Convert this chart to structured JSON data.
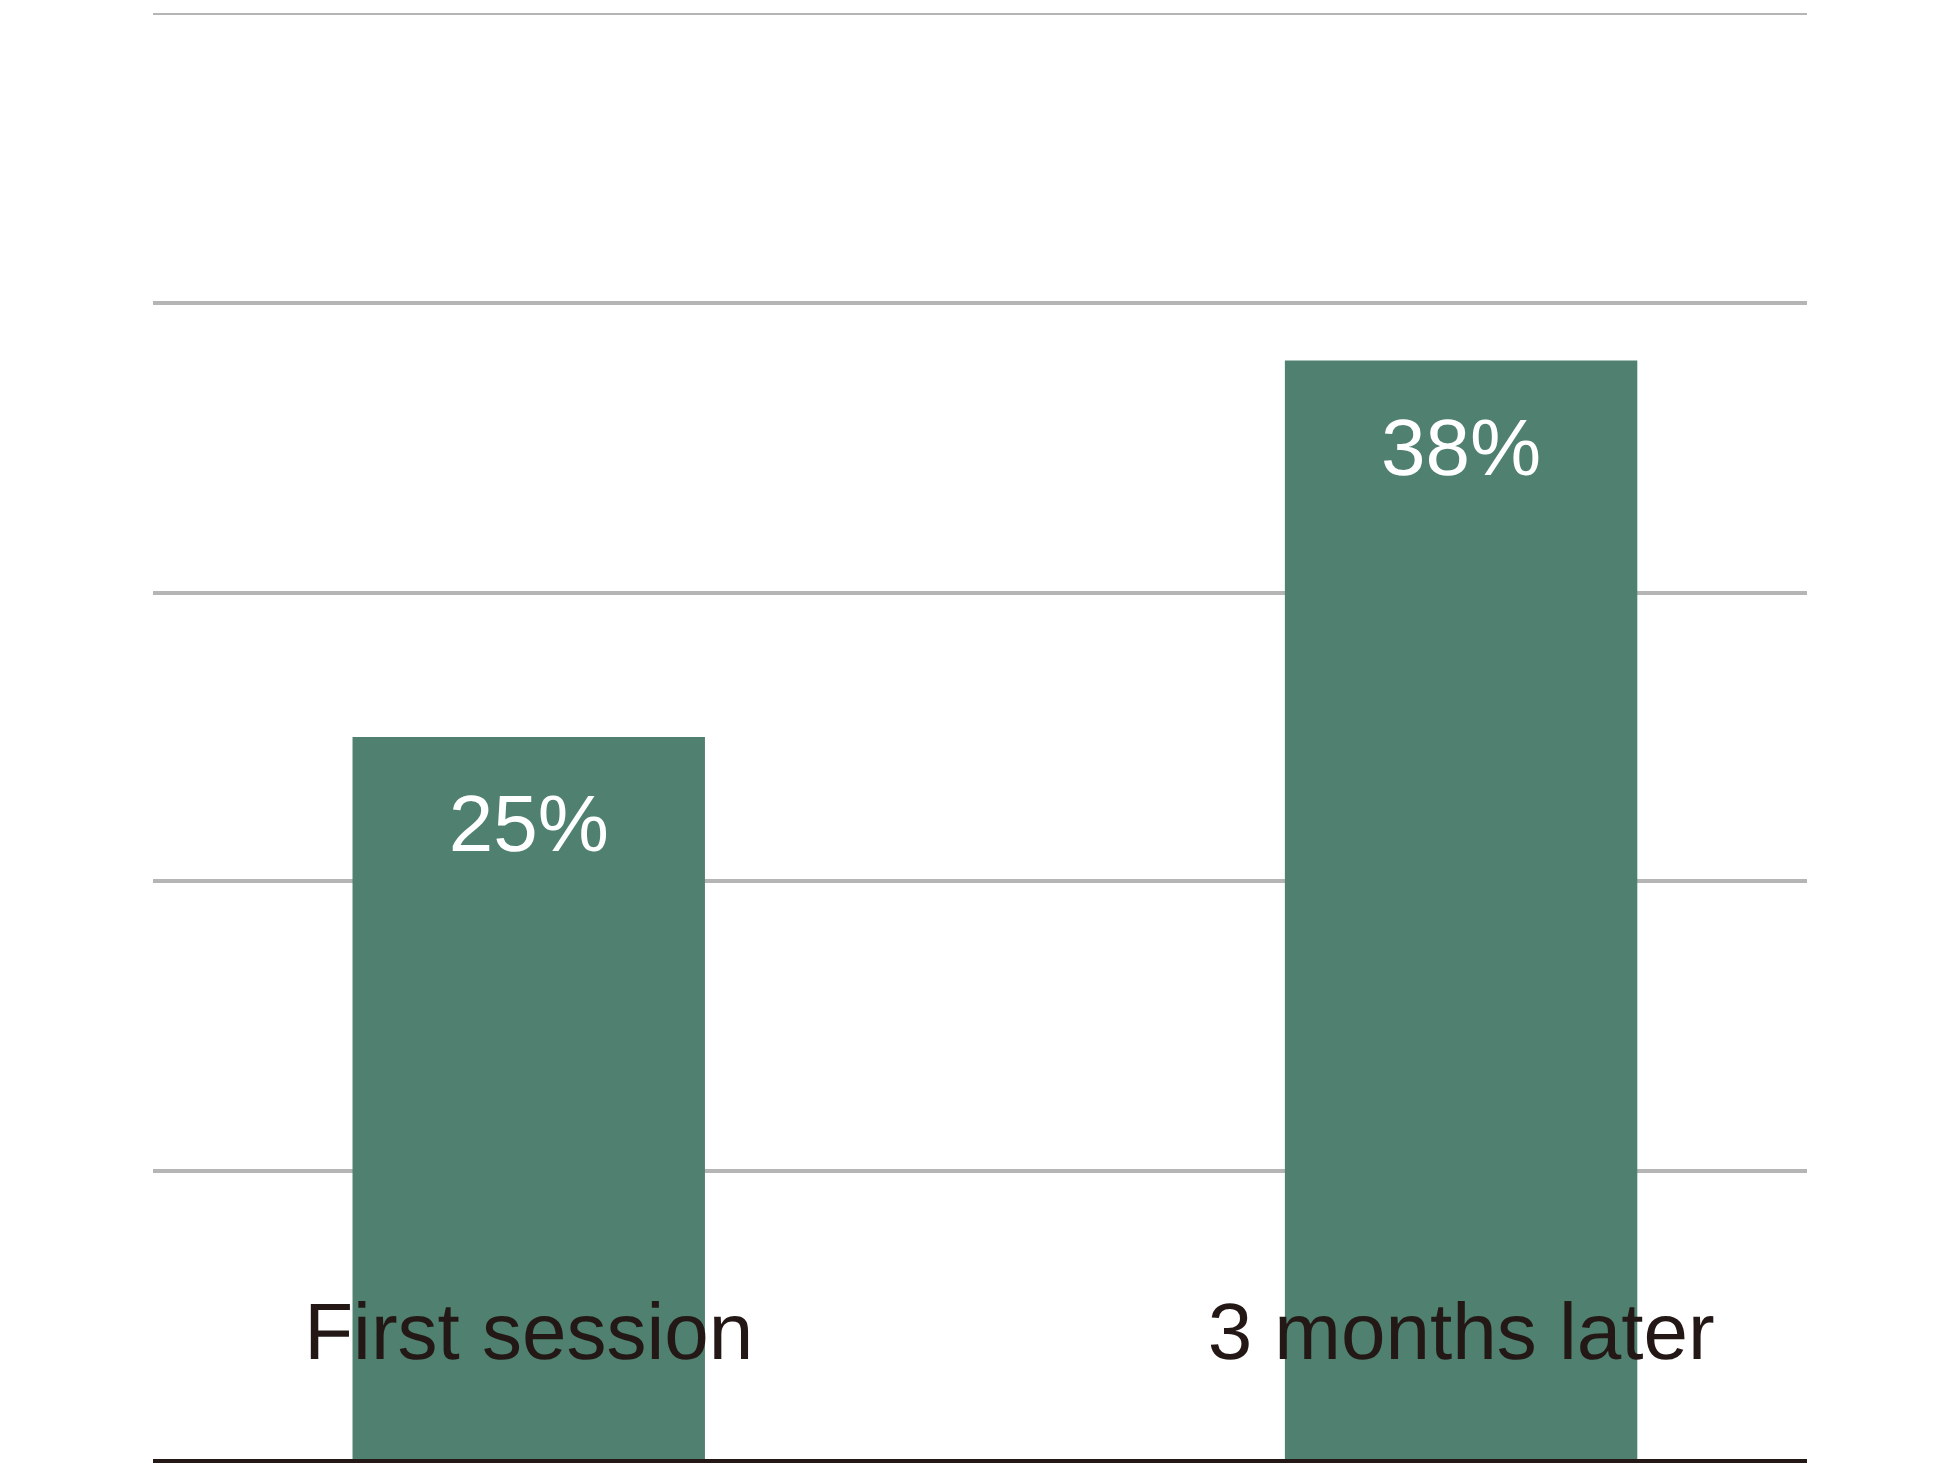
{
  "chart_data": {
    "type": "bar",
    "categories": [
      "First session",
      "3 months later"
    ],
    "values": [
      25,
      38
    ],
    "color": "#4f8070",
    "data_labels": true,
    "ylim": [
      0,
      50
    ],
    "yticks": [
      {
        "value": 0,
        "label": null
      },
      {
        "value": 10,
        "label": null
      },
      {
        "value": 20,
        "label": null
      },
      {
        "value": 30,
        "label": null
      },
      {
        "value": 40,
        "label": null
      },
      {
        "value": 50,
        "label": null
      }
    ],
    "tick_labels": false,
    "grid": "y",
    "value_labels": [
      "25%",
      "38%"
    ]
  }
}
